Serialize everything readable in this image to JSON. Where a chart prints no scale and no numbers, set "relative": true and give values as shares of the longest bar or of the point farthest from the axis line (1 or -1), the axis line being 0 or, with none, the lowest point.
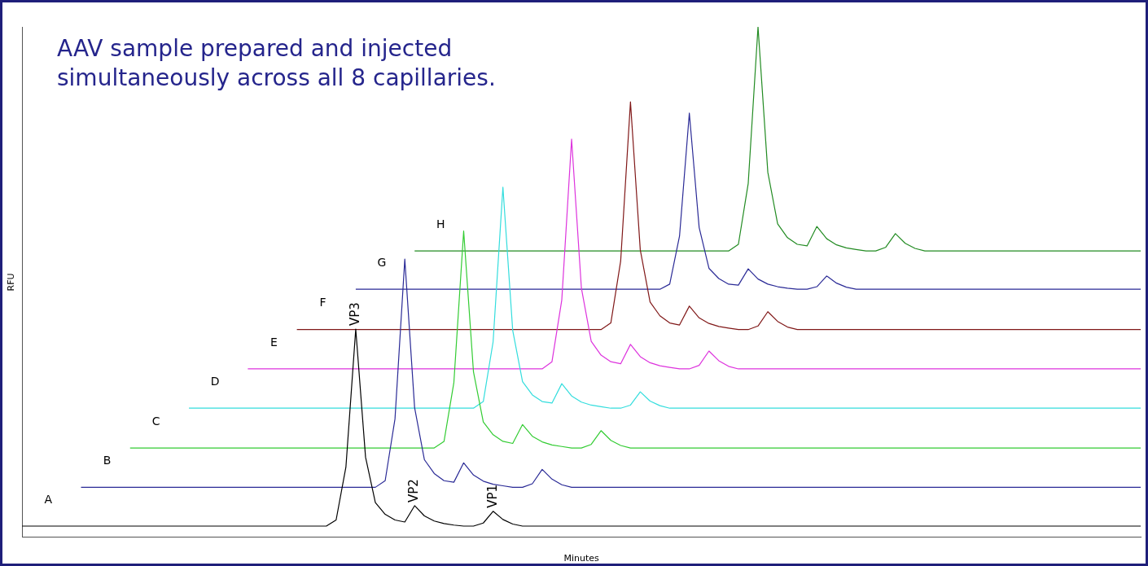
{
  "chart_data": {
    "type": "line",
    "title": "AAV sample prepared and injected simultaneously across all 8 capillaries.",
    "xlabel": "Minutes",
    "ylabel": "RFU",
    "relative": true,
    "tick_labels": false,
    "grid": false,
    "legend": false,
    "marker": "none",
    "line_style": "solid",
    "annotations": [
      "VP3",
      "VP2",
      "VP1"
    ],
    "categories": [
      null,
      null,
      null,
      null,
      null,
      null,
      null,
      null,
      null,
      null,
      null,
      null,
      null,
      null,
      null,
      null,
      null,
      null,
      null,
      null,
      null,
      null,
      null,
      null,
      null,
      null,
      null,
      null,
      null,
      null,
      null,
      null,
      null,
      null,
      null,
      null,
      null,
      null,
      null,
      null,
      null,
      null,
      null,
      null,
      null,
      null,
      null,
      null,
      null,
      null,
      null,
      null,
      null,
      null,
      null,
      null,
      null,
      null,
      null,
      null,
      null,
      null,
      null,
      null,
      null,
      null,
      null,
      null,
      null,
      null,
      null,
      null,
      null,
      null,
      null,
      null,
      null,
      null,
      null,
      null,
      null,
      null,
      null,
      null,
      null,
      null,
      null,
      null,
      null,
      null,
      null,
      null,
      null,
      null,
      null,
      null,
      null,
      null,
      null,
      null,
      null,
      null,
      null,
      null,
      null,
      null,
      null,
      null,
      null,
      null,
      null,
      null,
      null,
      null,
      null
    ],
    "series": [
      {
        "name": "A",
        "color": "#000000",
        "values": [
          0.022,
          0.022,
          0.022,
          0.022,
          0.022,
          0.022,
          0.022,
          0.022,
          0.022,
          0.022,
          0.022,
          0.022,
          0.022,
          0.022,
          0.022,
          0.022,
          0.022,
          0.022,
          0.022,
          0.022,
          0.022,
          0.022,
          0.022,
          0.022,
          0.022,
          0.022,
          0.022,
          0.022,
          0.022,
          0.022,
          0.022,
          0.022,
          0.034,
          0.138,
          0.408,
          0.157,
          0.068,
          0.045,
          0.034,
          0.03,
          0.062,
          0.042,
          0.032,
          0.027,
          0.024,
          0.022,
          0.022,
          0.028,
          0.051,
          0.035,
          0.026,
          0.022,
          0.022,
          0.022,
          0.022,
          0.022,
          0.022,
          0.022,
          0.022,
          0.022,
          0.022,
          0.022,
          0.022,
          0.022,
          0.022,
          0.022,
          0.022,
          0.022,
          0.022,
          0.022,
          0.022,
          0.022,
          0.022,
          0.022,
          0.022,
          0.022,
          0.022,
          0.022,
          0.022,
          0.022,
          0.022,
          0.022,
          0.022,
          0.022,
          0.022,
          0.022,
          0.022,
          0.022,
          0.022,
          0.022,
          0.022,
          0.022,
          0.022,
          0.022,
          0.022,
          0.022,
          0.022,
          0.022,
          0.022,
          0.022,
          0.022,
          0.022,
          0.022,
          0.022,
          0.022,
          0.022,
          0.022,
          0.022,
          0.022,
          0.022,
          0.022,
          0.022,
          0.022,
          0.022,
          0.022
        ]
      },
      {
        "name": "B",
        "color": "#2a2a96",
        "values": [
          null,
          null,
          null,
          null,
          null,
          null,
          0.098,
          0.098,
          0.098,
          0.098,
          0.098,
          0.098,
          0.098,
          0.098,
          0.098,
          0.098,
          0.098,
          0.098,
          0.098,
          0.098,
          0.098,
          0.098,
          0.098,
          0.098,
          0.098,
          0.098,
          0.098,
          0.098,
          0.098,
          0.098,
          0.098,
          0.098,
          0.098,
          0.098,
          0.098,
          0.098,
          0.098,
          0.111,
          0.232,
          0.545,
          0.254,
          0.152,
          0.125,
          0.111,
          0.108,
          0.146,
          0.122,
          0.11,
          0.104,
          0.101,
          0.098,
          0.098,
          0.105,
          0.133,
          0.114,
          0.103,
          0.098,
          0.098,
          0.098,
          0.098,
          0.098,
          0.098,
          0.098,
          0.098,
          0.098,
          0.098,
          0.098,
          0.098,
          0.098,
          0.098,
          0.098,
          0.098,
          0.098,
          0.098,
          0.098,
          0.098,
          0.098,
          0.098,
          0.098,
          0.098,
          0.098,
          0.098,
          0.098,
          0.098,
          0.098,
          0.098,
          0.098,
          0.098,
          0.098,
          0.098,
          0.098,
          0.098,
          0.098,
          0.098,
          0.098,
          0.098,
          0.098,
          0.098,
          0.098,
          0.098,
          0.098,
          0.098,
          0.098,
          0.098,
          0.098,
          0.098,
          0.098,
          0.098,
          0.098,
          0.098,
          0.098,
          0.098,
          0.098,
          0.098,
          0.098
        ]
      },
      {
        "name": "C",
        "color": "#33cc33",
        "values": [
          null,
          null,
          null,
          null,
          null,
          null,
          null,
          null,
          null,
          null,
          null,
          0.175,
          0.175,
          0.175,
          0.175,
          0.175,
          0.175,
          0.175,
          0.175,
          0.175,
          0.175,
          0.175,
          0.175,
          0.175,
          0.175,
          0.175,
          0.175,
          0.175,
          0.175,
          0.175,
          0.175,
          0.175,
          0.175,
          0.175,
          0.175,
          0.175,
          0.175,
          0.175,
          0.175,
          0.175,
          0.175,
          0.175,
          0.175,
          0.188,
          0.303,
          0.6,
          0.324,
          0.226,
          0.201,
          0.188,
          0.184,
          0.221,
          0.198,
          0.187,
          0.181,
          0.178,
          0.175,
          0.175,
          0.182,
          0.209,
          0.19,
          0.18,
          0.175,
          0.175,
          0.175,
          0.175,
          0.175,
          0.175,
          0.175,
          0.175,
          0.175,
          0.175,
          0.175,
          0.175,
          0.175,
          0.175,
          0.175,
          0.175,
          0.175,
          0.175,
          0.175,
          0.175,
          0.175,
          0.175,
          0.175,
          0.175,
          0.175,
          0.175,
          0.175,
          0.175,
          0.175,
          0.175,
          0.175,
          0.175,
          0.175,
          0.175,
          0.175,
          0.175,
          0.175,
          0.175,
          0.175,
          0.175,
          0.175,
          0.175,
          0.175,
          0.175,
          0.175,
          0.175,
          0.175,
          0.175,
          0.175,
          0.175,
          0.175,
          0.175,
          0.175
        ]
      },
      {
        "name": "D",
        "color": "#33dddd",
        "values": [
          null,
          null,
          null,
          null,
          null,
          null,
          null,
          null,
          null,
          null,
          null,
          null,
          null,
          null,
          null,
          null,
          null,
          0.253,
          0.253,
          0.253,
          0.253,
          0.253,
          0.253,
          0.253,
          0.253,
          0.253,
          0.253,
          0.253,
          0.253,
          0.253,
          0.253,
          0.253,
          0.253,
          0.253,
          0.253,
          0.253,
          0.253,
          0.253,
          0.253,
          0.253,
          0.253,
          0.253,
          0.253,
          0.253,
          0.253,
          0.253,
          0.253,
          0.266,
          0.383,
          0.686,
          0.405,
          0.305,
          0.279,
          0.266,
          0.263,
          0.301,
          0.277,
          0.265,
          0.259,
          0.256,
          0.253,
          0.253,
          0.259,
          0.285,
          0.267,
          0.258,
          0.253,
          0.253,
          0.253,
          0.253,
          0.253,
          0.253,
          0.253,
          0.253,
          0.253,
          0.253,
          0.253,
          0.253,
          0.253,
          0.253,
          0.253,
          0.253,
          0.253,
          0.253,
          0.253,
          0.253,
          0.253,
          0.253,
          0.253,
          0.253,
          0.253,
          0.253,
          0.253,
          0.253,
          0.253,
          0.253,
          0.253,
          0.253,
          0.253,
          0.253,
          0.253,
          0.253,
          0.253,
          0.253,
          0.253,
          0.253,
          0.253,
          0.253,
          0.253,
          0.253,
          0.253,
          0.253,
          0.253,
          0.253,
          0.253
        ]
      },
      {
        "name": "E",
        "color": "#dd33dd",
        "values": [
          null,
          null,
          null,
          null,
          null,
          null,
          null,
          null,
          null,
          null,
          null,
          null,
          null,
          null,
          null,
          null,
          null,
          null,
          null,
          null,
          null,
          null,
          null,
          0.33,
          0.33,
          0.33,
          0.33,
          0.33,
          0.33,
          0.33,
          0.33,
          0.33,
          0.33,
          0.33,
          0.33,
          0.33,
          0.33,
          0.33,
          0.33,
          0.33,
          0.33,
          0.33,
          0.33,
          0.33,
          0.33,
          0.33,
          0.33,
          0.33,
          0.33,
          0.33,
          0.33,
          0.33,
          0.33,
          0.33,
          0.344,
          0.465,
          0.78,
          0.488,
          0.384,
          0.357,
          0.344,
          0.34,
          0.378,
          0.354,
          0.342,
          0.336,
          0.333,
          0.33,
          0.33,
          0.337,
          0.365,
          0.346,
          0.335,
          0.33,
          0.33,
          0.33,
          0.33,
          0.33,
          0.33,
          0.33,
          0.33,
          0.33,
          0.33,
          0.33,
          0.33,
          0.33,
          0.33,
          0.33,
          0.33,
          0.33,
          0.33,
          0.33,
          0.33,
          0.33,
          0.33,
          0.33,
          0.33,
          0.33,
          0.33,
          0.33,
          0.33,
          0.33,
          0.33,
          0.33,
          0.33,
          0.33,
          0.33,
          0.33,
          0.33,
          0.33,
          0.33,
          0.33,
          0.33,
          0.33,
          0.33
        ]
      },
      {
        "name": "F",
        "color": "#801818",
        "values": [
          null,
          null,
          null,
          null,
          null,
          null,
          null,
          null,
          null,
          null,
          null,
          null,
          null,
          null,
          null,
          null,
          null,
          null,
          null,
          null,
          null,
          null,
          null,
          null,
          null,
          null,
          null,
          null,
          0.407,
          0.407,
          0.407,
          0.407,
          0.407,
          0.407,
          0.407,
          0.407,
          0.407,
          0.407,
          0.407,
          0.407,
          0.407,
          0.407,
          0.407,
          0.407,
          0.407,
          0.407,
          0.407,
          0.407,
          0.407,
          0.407,
          0.407,
          0.407,
          0.407,
          0.407,
          0.407,
          0.407,
          0.407,
          0.407,
          0.407,
          0.407,
          0.42,
          0.541,
          0.853,
          0.563,
          0.461,
          0.434,
          0.42,
          0.416,
          0.453,
          0.43,
          0.419,
          0.413,
          0.41,
          0.407,
          0.407,
          0.414,
          0.442,
          0.423,
          0.412,
          0.407,
          0.407,
          0.407,
          0.407,
          0.407,
          0.407,
          0.407,
          0.407,
          0.407,
          0.407,
          0.407,
          0.407,
          0.407,
          0.407,
          0.407,
          0.407,
          0.407,
          0.407,
          0.407,
          0.407,
          0.407,
          0.407,
          0.407,
          0.407,
          0.407,
          0.407,
          0.407,
          0.407,
          0.407,
          0.407,
          0.407,
          0.407,
          0.407,
          0.407,
          0.407,
          0.407
        ]
      },
      {
        "name": "G",
        "color": "#2a2a96",
        "values": [
          null,
          null,
          null,
          null,
          null,
          null,
          null,
          null,
          null,
          null,
          null,
          null,
          null,
          null,
          null,
          null,
          null,
          null,
          null,
          null,
          null,
          null,
          null,
          null,
          null,
          null,
          null,
          null,
          null,
          null,
          null,
          null,
          null,
          null,
          0.486,
          0.486,
          0.486,
          0.486,
          0.486,
          0.486,
          0.486,
          0.486,
          0.486,
          0.486,
          0.486,
          0.486,
          0.486,
          0.486,
          0.486,
          0.486,
          0.486,
          0.486,
          0.486,
          0.486,
          0.486,
          0.486,
          0.486,
          0.486,
          0.486,
          0.486,
          0.486,
          0.486,
          0.486,
          0.486,
          0.486,
          0.486,
          0.496,
          0.59,
          0.831,
          0.607,
          0.527,
          0.507,
          0.496,
          0.494,
          0.526,
          0.506,
          0.496,
          0.491,
          0.488,
          0.486,
          0.486,
          0.491,
          0.512,
          0.498,
          0.49,
          0.486,
          0.486,
          0.486,
          0.486,
          0.486,
          0.486,
          0.486,
          0.486,
          0.486,
          0.486,
          0.486,
          0.486,
          0.486,
          0.486,
          0.486,
          0.486,
          0.486,
          0.486,
          0.486,
          0.486,
          0.486,
          0.486,
          0.486,
          0.486,
          0.486,
          0.486,
          0.486,
          0.486,
          0.486,
          0.486
        ]
      },
      {
        "name": "H",
        "color": "#228b22",
        "values": [
          null,
          null,
          null,
          null,
          null,
          null,
          null,
          null,
          null,
          null,
          null,
          null,
          null,
          null,
          null,
          null,
          null,
          null,
          null,
          null,
          null,
          null,
          null,
          null,
          null,
          null,
          null,
          null,
          null,
          null,
          null,
          null,
          null,
          null,
          null,
          null,
          null,
          null,
          null,
          null,
          0.561,
          0.561,
          0.561,
          0.561,
          0.561,
          0.561,
          0.561,
          0.561,
          0.561,
          0.561,
          0.561,
          0.561,
          0.561,
          0.561,
          0.561,
          0.561,
          0.561,
          0.561,
          0.561,
          0.561,
          0.561,
          0.561,
          0.561,
          0.561,
          0.561,
          0.561,
          0.561,
          0.561,
          0.561,
          0.561,
          0.561,
          0.561,
          0.561,
          0.574,
          0.693,
          1.0,
          0.715,
          0.614,
          0.587,
          0.574,
          0.571,
          0.609,
          0.585,
          0.573,
          0.567,
          0.564,
          0.561,
          0.561,
          0.568,
          0.595,
          0.576,
          0.566,
          0.561,
          0.561,
          0.561,
          0.561,
          0.561,
          0.561,
          0.561,
          0.561,
          0.561,
          0.561,
          0.561,
          0.561,
          0.561,
          0.561,
          0.561,
          0.561,
          0.561,
          0.561,
          0.561,
          0.561,
          0.561,
          0.561,
          0.561
        ]
      }
    ]
  }
}
